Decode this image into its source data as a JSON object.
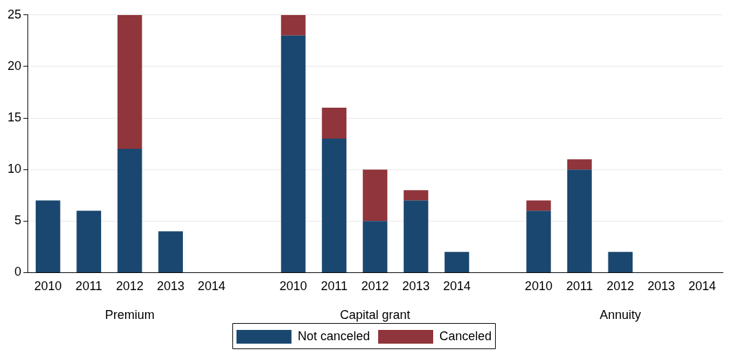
{
  "chart_data": {
    "type": "bar",
    "stacked": true,
    "categories": [
      "2010",
      "2011",
      "2012",
      "2013",
      "2014",
      null,
      "2010",
      "2011",
      "2012",
      "2013",
      "2014",
      null,
      "2010",
      "2011",
      "2012",
      "2013",
      "2014"
    ],
    "series": [
      {
        "name": "Not canceled",
        "color": "#1a476f",
        "values": [
          7,
          6,
          12,
          4,
          0,
          null,
          23,
          13,
          5,
          7,
          2,
          null,
          6,
          10,
          2,
          0,
          0
        ]
      },
      {
        "name": "Canceled",
        "color": "#90353b",
        "values": [
          0,
          0,
          13,
          0,
          0,
          null,
          2,
          3,
          5,
          1,
          0,
          null,
          1,
          1,
          0,
          0,
          0
        ]
      }
    ],
    "annotations": [
      "Premium",
      "Capital grant",
      "Annuity"
    ],
    "ylim": [
      0,
      25
    ],
    "yticks": [
      0,
      5,
      10,
      15,
      20,
      25
    ],
    "grid": "y",
    "legend": "bottom"
  }
}
